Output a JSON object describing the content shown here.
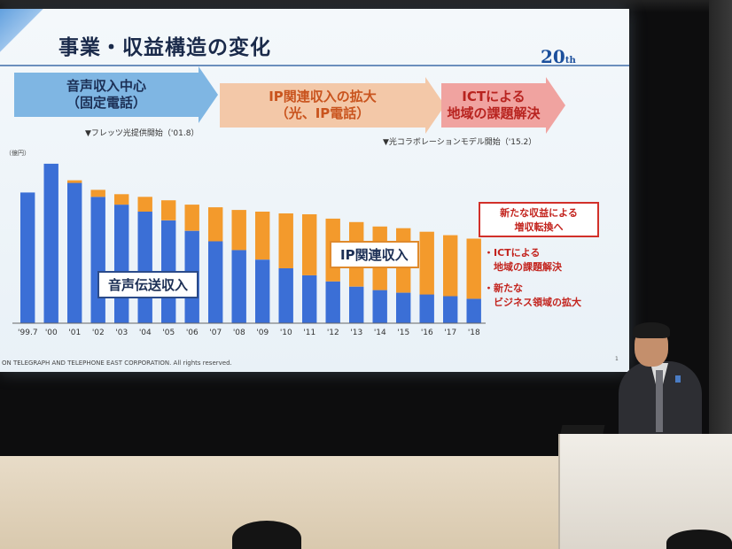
{
  "slide": {
    "title": "事業・収益構造の変化",
    "logo": "20",
    "logo_suffix": "th",
    "arrows": [
      {
        "label": "音声収入中心\n（固定電話）"
      },
      {
        "label": "IP関連収入の拡大\n（光、IP電話）"
      },
      {
        "label": "ICTによる\n地域の課題解決"
      }
    ],
    "milestone_flets": "▼フレッツ光提供開始（'01.8）",
    "milestone_collab": "▼光コラボレーションモデル開始（'15.2）",
    "y_unit": "（億円）",
    "voice_label": "音声伝送収入",
    "ip_label": "IP関連収入",
    "new_revenue_box": "新たな収益による\n増収転換へ",
    "bullet_1": "・ICTによる\n　地域の課題解決",
    "bullet_2": "・新たな\n　ビジネス領域の拡大",
    "page_number": "1",
    "copyright": "ON TELEGRAPH AND TELEPHONE EAST CORPORATION. All rights reserved."
  },
  "chart_data": {
    "type": "bar",
    "stacked": true,
    "categories": [
      "'99.7",
      "'00",
      "'01",
      "'02",
      "'03",
      "'04",
      "'05",
      "'06",
      "'07",
      "'08",
      "'09",
      "'10",
      "'11",
      "'12",
      "'13",
      "'14",
      "'15",
      "'16",
      "'17",
      "'18"
    ],
    "series": [
      {
        "name": "音声伝送収入",
        "color": "#3b6fd6",
        "values": [
          150,
          183,
          161,
          145,
          136,
          128,
          118,
          106,
          94,
          84,
          73,
          63,
          55,
          48,
          42,
          38,
          35,
          33,
          31,
          28
        ]
      },
      {
        "name": "IP関連収入",
        "color": "#f39a2c",
        "values": [
          0,
          0,
          3,
          8,
          12,
          17,
          23,
          30,
          39,
          46,
          55,
          63,
          70,
          72,
          74,
          73,
          74,
          72,
          70,
          69
        ]
      }
    ],
    "ylim": [
      0,
      190
    ],
    "grid": false,
    "legend": "none"
  },
  "colors": {
    "voice": "#3b6fd6",
    "ip": "#f39a2c",
    "accent_red": "#c3241e"
  }
}
